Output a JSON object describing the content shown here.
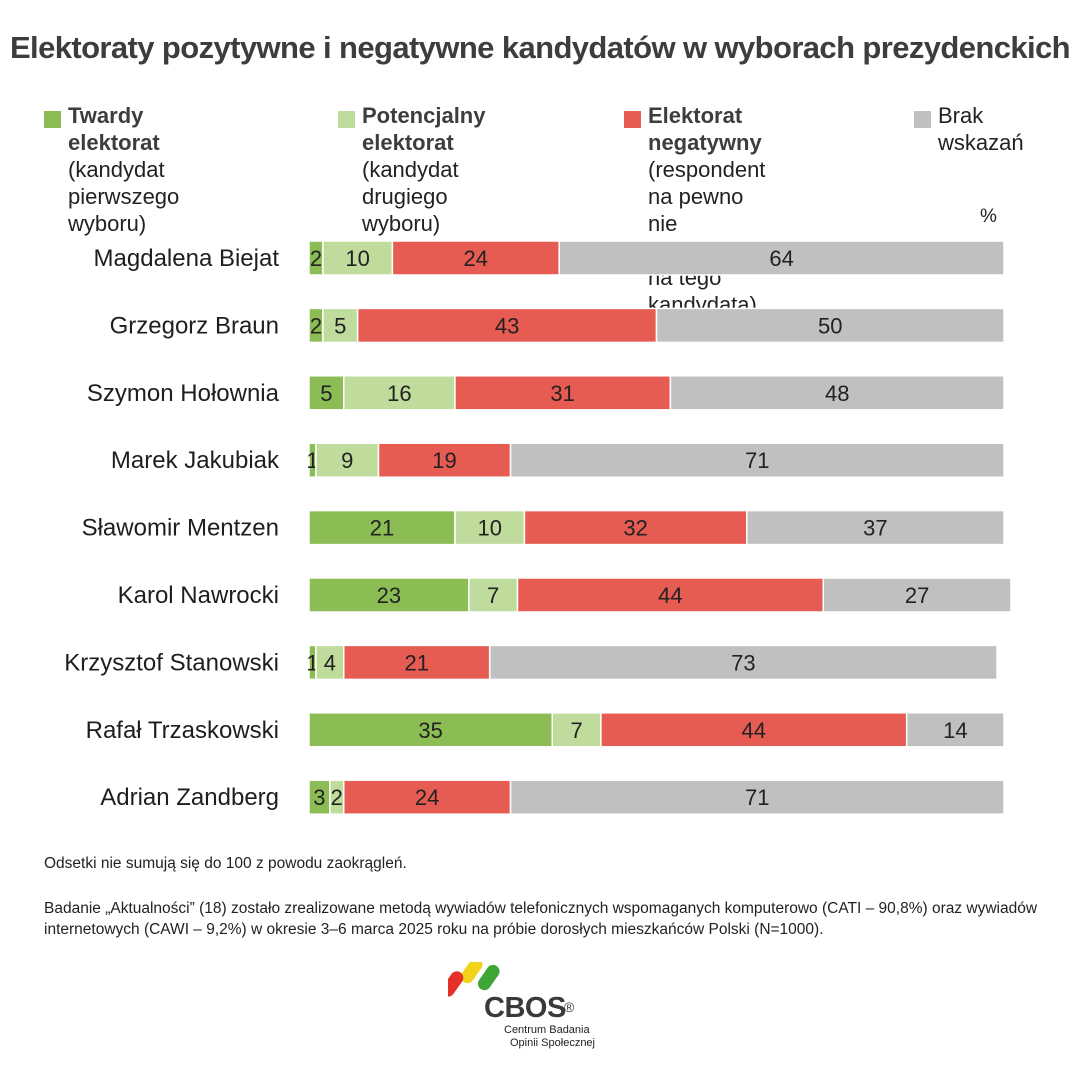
{
  "title": "Elektoraty pozytywne i negatywne kandydatów w wyborach prezydenckich",
  "legend": [
    {
      "label": "Twardy elektorat",
      "sub": "(kandydat pierwszego\nwyboru)",
      "color": "#8cbd54"
    },
    {
      "label": "Potencjalny elektorat",
      "sub": "(kandydat drugiego\nwyboru)",
      "color": "#bfdc9d"
    },
    {
      "label": "Elektorat negatywny",
      "sub": "(respondent na pewno\nnie zagłosowałby\nna tego kandydata)",
      "color": "#e65b52"
    },
    {
      "label": "",
      "sub": "Brak\nwskazań",
      "color": "#c0c0c0"
    }
  ],
  "unit": "%",
  "chart_data": {
    "type": "bar",
    "orientation": "horizontal",
    "stacked": true,
    "categories": [
      "Magdalena Biejat",
      "Grzegorz Braun",
      "Szymon Hołownia",
      "Marek Jakubiak",
      "Sławomir Mentzen",
      "Karol Nawrocki",
      "Krzysztof Stanowski",
      "Rafał Trzaskowski",
      "Adrian Zandberg"
    ],
    "series": [
      {
        "name": "Twardy elektorat",
        "color": "#8cbd54",
        "values": [
          2,
          2,
          5,
          1,
          21,
          23,
          1,
          35,
          3
        ]
      },
      {
        "name": "Potencjalny elektorat",
        "color": "#bfdc9d",
        "values": [
          10,
          5,
          16,
          9,
          10,
          7,
          4,
          7,
          2
        ]
      },
      {
        "name": "Elektorat negatywny",
        "color": "#e65b52",
        "values": [
          24,
          43,
          31,
          19,
          32,
          44,
          21,
          44,
          24
        ]
      },
      {
        "name": "Brak wskazań",
        "color": "#c0c0c0",
        "values": [
          64,
          50,
          48,
          71,
          37,
          27,
          73,
          14,
          71
        ]
      }
    ],
    "xlim": [
      0,
      100
    ],
    "unit": "%"
  },
  "note": "Odsetki nie sumują się do 100 z powodu zaokrągleń.",
  "methodology": "Badanie „Aktualności” (18) zostało zrealizowane metodą wywiadów telefonicznych wspomaganych komputerowo (CATI – 90,8%) oraz wywiadów internetowych (CAWI – 9,2%) w okresie 3–6 marca 2025 roku na próbie dorosłych mieszkańców Polski (N=1000).",
  "logo": {
    "name": "CBOS",
    "reg": "®",
    "line1": "Centrum Badania",
    "line2": "Opinii Społecznej"
  }
}
